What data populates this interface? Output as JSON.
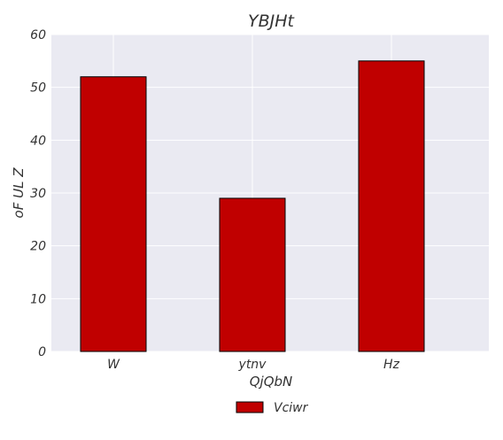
{
  "chart_data": {
    "type": "bar",
    "title": "YBJHt",
    "xlabel": "QjQbN",
    "ylabel": "oF UL Z",
    "categories": [
      "W",
      "ytnv",
      "Hz"
    ],
    "series": [
      {
        "name": "Vciwr",
        "values": [
          52,
          29,
          55
        ],
        "color": "#c00000"
      }
    ],
    "ylim": [
      0,
      60
    ],
    "yticks": [
      0,
      10,
      20,
      30,
      40,
      50,
      60
    ],
    "grid": true,
    "legend": "bottom-center",
    "background_color": "#eaeaf2",
    "grid_color": "#ffffff",
    "bar_edge_color": "#000000"
  }
}
